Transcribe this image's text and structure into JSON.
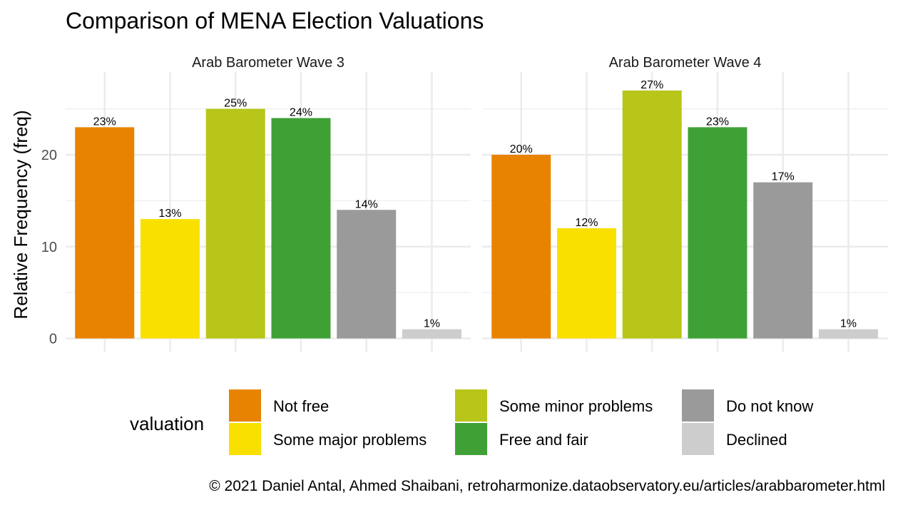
{
  "chart_data": {
    "type": "bar",
    "title": "Comparison of MENA Election Valuations",
    "ylabel": "Relative Frequency (freq)",
    "xlabel": "",
    "ylim": [
      0,
      28.5
    ],
    "yticks": [
      0,
      10,
      20
    ],
    "grid": true,
    "categories": [
      "Not free",
      "Some major problems",
      "Some minor problems",
      "Free and fair",
      "Do not know",
      "Declined"
    ],
    "colors": [
      "#E88300",
      "#F9E000",
      "#B7C619",
      "#3FA135",
      "#9A9A9A",
      "#CDCDCD"
    ],
    "facets": [
      {
        "name": "Arab Barometer Wave 3",
        "values": [
          23,
          13,
          25,
          24,
          14,
          1
        ],
        "labels": [
          "23%",
          "13%",
          "25%",
          "24%",
          "14%",
          "1%"
        ]
      },
      {
        "name": "Arab Barometer Wave 4",
        "values": [
          20,
          12,
          27,
          23,
          17,
          1
        ],
        "labels": [
          "20%",
          "12%",
          "27%",
          "23%",
          "17%",
          "1%"
        ]
      }
    ],
    "legend": {
      "title": "valuation",
      "placement": "bottom",
      "items": [
        "Not free",
        "Some major problems",
        "Some minor problems",
        "Free and fair",
        "Do not know",
        "Declined"
      ]
    },
    "caption": "© 2021 Daniel Antal, Ahmed Shaibani, retroharmonize.dataobservatory.eu/articles/arabbarometer.html"
  }
}
